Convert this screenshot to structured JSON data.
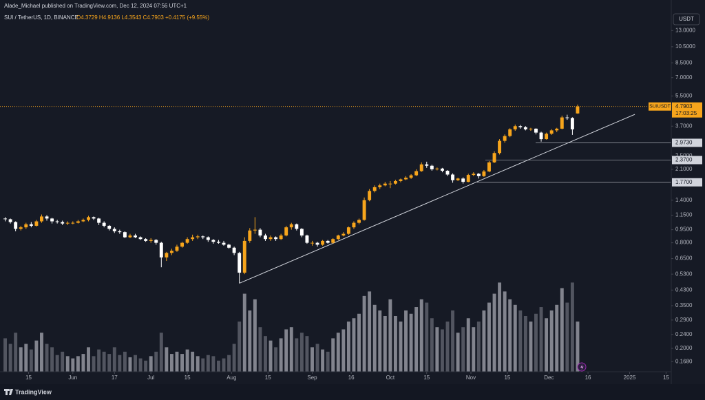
{
  "chart_data": {
    "type": "candlestick",
    "header": "Alade_Michael published on TradingView.com, Dec 12, 2024 07:56 UTC+1",
    "symbol_line": "SUI / TetherUS, 1D, BINANCE",
    "ohlc_line": "O4.3729 H4.9136 L4.3543 C4.7903 +0.4175 (+9.55%)",
    "currency": "USDT",
    "symbol": "SUIUSDT",
    "countdown": "17:03:25",
    "footer": "TradingView",
    "log_scale": true,
    "grid": false,
    "up_color": "#f7a51c",
    "down_color": "#ffffff",
    "volume_up_color": "#9598a1",
    "volume_down_color": "#5d606b",
    "ylim": [
      0.147,
      19.4
    ],
    "vlim": [
      0,
      100
    ],
    "xlim": [
      "2024-05-04",
      "2025-01-17"
    ],
    "yticks": [
      {
        "value": 13,
        "label": "13.0000"
      },
      {
        "value": 10.5,
        "label": "10.5000"
      },
      {
        "value": 8.5,
        "label": "8.5000"
      },
      {
        "value": 7,
        "label": "7.0000"
      },
      {
        "value": 5.5,
        "label": "5.5000"
      },
      {
        "value": 3.7,
        "label": "3.7000"
      },
      {
        "value": 2.5,
        "label": "2.5000"
      },
      {
        "value": 2.1,
        "label": "2.1000"
      },
      {
        "value": 1.4,
        "label": "1.4000"
      },
      {
        "value": 1.15,
        "label": "1.1500"
      },
      {
        "value": 0.95,
        "label": "0.9500"
      },
      {
        "value": 0.8,
        "label": "0.8000"
      },
      {
        "value": 0.65,
        "label": "0.6500"
      },
      {
        "value": 0.53,
        "label": "0.5300"
      },
      {
        "value": 0.43,
        "label": "0.4300"
      },
      {
        "value": 0.35,
        "label": "0.3500"
      },
      {
        "value": 0.29,
        "label": "0.2900"
      },
      {
        "value": 0.24,
        "label": "0.2400"
      },
      {
        "value": 0.2,
        "label": "0.2000"
      },
      {
        "value": 0.168,
        "label": "0.1680"
      }
    ],
    "xticks": [
      {
        "value": "2024-05-15",
        "label": "15"
      },
      {
        "value": "2024-06-01",
        "label": "Jun"
      },
      {
        "value": "2024-06-17",
        "label": "17"
      },
      {
        "value": "2024-07-01",
        "label": "Jul"
      },
      {
        "value": "2024-07-15",
        "label": "15"
      },
      {
        "value": "2024-08-01",
        "label": "Aug"
      },
      {
        "value": "2024-08-15",
        "label": "15"
      },
      {
        "value": "2024-09-01",
        "label": "Sep"
      },
      {
        "value": "2024-09-16",
        "label": "16"
      },
      {
        "value": "2024-10-01",
        "label": "Oct"
      },
      {
        "value": "2024-10-15",
        "label": "15"
      },
      {
        "value": "2024-11-01",
        "label": "Nov"
      },
      {
        "value": "2024-11-15",
        "label": "15"
      },
      {
        "value": "2024-12-01",
        "label": "Dec"
      },
      {
        "value": "2024-12-16",
        "label": "16"
      },
      {
        "value": "2025-01-01",
        "label": "2025"
      },
      {
        "value": "2025-01-15",
        "label": "15"
      }
    ],
    "levels": [
      {
        "value": 2.973,
        "label": "2.9730"
      },
      {
        "value": 2.37,
        "label": "2.3700"
      },
      {
        "value": 1.77,
        "label": "1.7700"
      }
    ],
    "trendline": [
      [
        "2024-08-04",
        0.47
      ],
      [
        "2025-01-03",
        4.32
      ]
    ],
    "candles": [
      [
        "2024-05-06",
        1.1,
        1.12,
        1.06,
        1.09,
        30
      ],
      [
        "2024-05-08",
        1.09,
        1.1,
        1.03,
        1.05,
        25
      ],
      [
        "2024-05-10",
        1.05,
        1.06,
        0.93,
        0.96,
        35
      ],
      [
        "2024-05-12",
        0.96,
        1.0,
        0.94,
        0.98,
        22
      ],
      [
        "2024-05-14",
        0.98,
        1.04,
        0.96,
        1.02,
        25
      ],
      [
        "2024-05-16",
        1.02,
        1.05,
        0.98,
        1.0,
        20
      ],
      [
        "2024-05-18",
        1.0,
        1.08,
        0.99,
        1.06,
        28
      ],
      [
        "2024-05-20",
        1.06,
        1.16,
        1.04,
        1.13,
        35
      ],
      [
        "2024-05-22",
        1.13,
        1.15,
        1.07,
        1.1,
        25
      ],
      [
        "2024-05-24",
        1.1,
        1.11,
        1.03,
        1.06,
        22
      ],
      [
        "2024-05-26",
        1.06,
        1.08,
        1.03,
        1.05,
        15
      ],
      [
        "2024-05-28",
        1.05,
        1.07,
        1.01,
        1.03,
        18
      ],
      [
        "2024-05-30",
        1.03,
        1.06,
        1.01,
        1.04,
        14
      ],
      [
        "2024-06-01",
        1.04,
        1.06,
        1.02,
        1.04,
        12
      ],
      [
        "2024-06-03",
        1.04,
        1.08,
        1.03,
        1.06,
        14
      ],
      [
        "2024-06-05",
        1.06,
        1.1,
        1.05,
        1.08,
        16
      ],
      [
        "2024-06-07",
        1.08,
        1.14,
        1.06,
        1.12,
        22
      ],
      [
        "2024-06-09",
        1.12,
        1.13,
        1.08,
        1.1,
        14
      ],
      [
        "2024-06-11",
        1.1,
        1.11,
        1.01,
        1.04,
        20
      ],
      [
        "2024-06-13",
        1.04,
        1.06,
        0.98,
        1.0,
        18
      ],
      [
        "2024-06-15",
        1.0,
        1.01,
        0.94,
        0.96,
        16
      ],
      [
        "2024-06-17",
        0.96,
        0.98,
        0.91,
        0.93,
        22
      ],
      [
        "2024-06-19",
        0.93,
        0.95,
        0.9,
        0.92,
        15
      ],
      [
        "2024-06-21",
        0.92,
        0.93,
        0.85,
        0.86,
        18
      ],
      [
        "2024-06-23",
        0.86,
        0.9,
        0.85,
        0.88,
        13
      ],
      [
        "2024-06-25",
        0.88,
        0.9,
        0.85,
        0.86,
        15
      ],
      [
        "2024-06-27",
        0.86,
        0.87,
        0.83,
        0.84,
        12
      ],
      [
        "2024-06-29",
        0.84,
        0.85,
        0.81,
        0.82,
        10
      ],
      [
        "2024-07-01",
        0.82,
        0.85,
        0.8,
        0.83,
        14
      ],
      [
        "2024-07-03",
        0.83,
        0.84,
        0.78,
        0.8,
        18
      ],
      [
        "2024-07-05",
        0.8,
        0.81,
        0.58,
        0.66,
        35
      ],
      [
        "2024-07-07",
        0.66,
        0.71,
        0.63,
        0.7,
        22
      ],
      [
        "2024-07-09",
        0.7,
        0.74,
        0.68,
        0.72,
        16
      ],
      [
        "2024-07-11",
        0.72,
        0.78,
        0.71,
        0.76,
        18
      ],
      [
        "2024-07-13",
        0.76,
        0.81,
        0.75,
        0.8,
        16
      ],
      [
        "2024-07-15",
        0.8,
        0.86,
        0.79,
        0.84,
        20
      ],
      [
        "2024-07-17",
        0.84,
        0.89,
        0.82,
        0.86,
        18
      ],
      [
        "2024-07-19",
        0.86,
        0.89,
        0.84,
        0.87,
        14
      ],
      [
        "2024-07-21",
        0.87,
        0.88,
        0.84,
        0.86,
        12
      ],
      [
        "2024-07-23",
        0.86,
        0.87,
        0.81,
        0.83,
        15
      ],
      [
        "2024-07-25",
        0.83,
        0.84,
        0.79,
        0.81,
        14
      ],
      [
        "2024-07-27",
        0.81,
        0.83,
        0.79,
        0.8,
        10
      ],
      [
        "2024-07-29",
        0.8,
        0.82,
        0.77,
        0.78,
        12
      ],
      [
        "2024-07-31",
        0.78,
        0.79,
        0.74,
        0.75,
        15
      ],
      [
        "2024-08-02",
        0.75,
        0.76,
        0.68,
        0.7,
        25
      ],
      [
        "2024-08-04",
        0.7,
        0.71,
        0.47,
        0.54,
        45
      ],
      [
        "2024-08-06",
        0.54,
        0.86,
        0.53,
        0.82,
        70
      ],
      [
        "2024-08-08",
        0.82,
        0.97,
        0.8,
        0.94,
        55
      ],
      [
        "2024-08-10",
        0.94,
        1.12,
        0.9,
        0.95,
        65
      ],
      [
        "2024-08-12",
        0.95,
        0.97,
        0.86,
        0.88,
        40
      ],
      [
        "2024-08-14",
        0.88,
        0.9,
        0.82,
        0.84,
        32
      ],
      [
        "2024-08-16",
        0.84,
        0.88,
        0.82,
        0.86,
        28
      ],
      [
        "2024-08-18",
        0.86,
        0.87,
        0.82,
        0.84,
        22
      ],
      [
        "2024-08-20",
        0.84,
        0.9,
        0.83,
        0.88,
        30
      ],
      [
        "2024-08-22",
        0.88,
        1.0,
        0.87,
        0.98,
        38
      ],
      [
        "2024-08-24",
        0.98,
        1.04,
        0.95,
        1.02,
        40
      ],
      [
        "2024-08-26",
        1.02,
        1.03,
        0.94,
        0.96,
        30
      ],
      [
        "2024-08-28",
        0.96,
        0.97,
        0.86,
        0.88,
        35
      ],
      [
        "2024-08-30",
        0.88,
        0.89,
        0.79,
        0.8,
        32
      ],
      [
        "2024-09-01",
        0.8,
        0.82,
        0.77,
        0.8,
        22
      ],
      [
        "2024-09-03",
        0.8,
        0.81,
        0.76,
        0.78,
        25
      ],
      [
        "2024-09-05",
        0.78,
        0.83,
        0.77,
        0.82,
        20
      ],
      [
        "2024-09-07",
        0.82,
        0.83,
        0.79,
        0.8,
        18
      ],
      [
        "2024-09-09",
        0.8,
        0.85,
        0.79,
        0.84,
        30
      ],
      [
        "2024-09-11",
        0.84,
        0.89,
        0.83,
        0.88,
        35
      ],
      [
        "2024-09-13",
        0.88,
        0.92,
        0.87,
        0.9,
        38
      ],
      [
        "2024-09-15",
        0.9,
        0.99,
        0.89,
        0.98,
        45
      ],
      [
        "2024-09-17",
        0.98,
        1.06,
        0.96,
        1.04,
        48
      ],
      [
        "2024-09-19",
        1.04,
        1.1,
        1.02,
        1.08,
        52
      ],
      [
        "2024-09-21",
        1.08,
        1.45,
        1.07,
        1.4,
        68
      ],
      [
        "2024-09-23",
        1.4,
        1.62,
        1.38,
        1.58,
        72
      ],
      [
        "2024-09-25",
        1.58,
        1.7,
        1.55,
        1.66,
        60
      ],
      [
        "2024-09-27",
        1.66,
        1.74,
        1.62,
        1.7,
        55
      ],
      [
        "2024-09-29",
        1.7,
        1.78,
        1.68,
        1.74,
        50
      ],
      [
        "2024-10-01",
        1.74,
        1.8,
        1.64,
        1.74,
        65
      ],
      [
        "2024-10-03",
        1.74,
        1.83,
        1.72,
        1.8,
        50
      ],
      [
        "2024-10-05",
        1.8,
        1.86,
        1.77,
        1.84,
        45
      ],
      [
        "2024-10-07",
        1.84,
        1.92,
        1.82,
        1.88,
        55
      ],
      [
        "2024-10-09",
        1.88,
        1.97,
        1.85,
        1.94,
        52
      ],
      [
        "2024-10-11",
        1.94,
        2.1,
        1.92,
        2.05,
        58
      ],
      [
        "2024-10-13",
        2.05,
        2.3,
        2.03,
        2.24,
        65
      ],
      [
        "2024-10-15",
        2.24,
        2.32,
        2.14,
        2.2,
        62
      ],
      [
        "2024-10-17",
        2.2,
        2.23,
        2.06,
        2.1,
        48
      ],
      [
        "2024-10-19",
        2.1,
        2.15,
        2.07,
        2.12,
        40
      ],
      [
        "2024-10-21",
        2.12,
        2.14,
        2.02,
        2.06,
        38
      ],
      [
        "2024-10-23",
        2.06,
        2.08,
        1.92,
        1.96,
        45
      ],
      [
        "2024-10-25",
        1.96,
        1.99,
        1.76,
        1.82,
        55
      ],
      [
        "2024-10-27",
        1.82,
        1.88,
        1.8,
        1.86,
        35
      ],
      [
        "2024-10-29",
        1.86,
        1.89,
        1.74,
        1.78,
        40
      ],
      [
        "2024-10-31",
        1.78,
        1.98,
        1.77,
        1.95,
        48
      ],
      [
        "2024-11-02",
        1.95,
        2.02,
        1.92,
        1.98,
        40
      ],
      [
        "2024-11-04",
        1.98,
        2.0,
        1.86,
        1.92,
        45
      ],
      [
        "2024-11-06",
        1.92,
        2.08,
        1.9,
        2.04,
        55
      ],
      [
        "2024-11-08",
        2.04,
        2.34,
        2.02,
        2.3,
        62
      ],
      [
        "2024-11-10",
        2.3,
        2.66,
        2.28,
        2.6,
        70
      ],
      [
        "2024-11-12",
        2.6,
        3.12,
        2.55,
        3.05,
        80
      ],
      [
        "2024-11-14",
        3.05,
        3.32,
        2.98,
        3.25,
        72
      ],
      [
        "2024-11-16",
        3.25,
        3.6,
        3.2,
        3.55,
        65
      ],
      [
        "2024-11-18",
        3.55,
        3.78,
        3.48,
        3.7,
        60
      ],
      [
        "2024-11-20",
        3.7,
        3.76,
        3.58,
        3.65,
        55
      ],
      [
        "2024-11-22",
        3.65,
        3.7,
        3.5,
        3.55,
        50
      ],
      [
        "2024-11-24",
        3.55,
        3.62,
        3.48,
        3.58,
        45
      ],
      [
        "2024-11-26",
        3.58,
        3.6,
        3.32,
        3.4,
        52
      ],
      [
        "2024-11-28",
        3.4,
        3.44,
        3.02,
        3.12,
        58
      ],
      [
        "2024-11-30",
        3.12,
        3.4,
        3.1,
        3.35,
        48
      ],
      [
        "2024-12-02",
        3.35,
        3.56,
        3.3,
        3.5,
        55
      ],
      [
        "2024-12-04",
        3.5,
        3.62,
        3.42,
        3.58,
        60
      ],
      [
        "2024-12-06",
        3.58,
        4.25,
        3.55,
        4.15,
        75
      ],
      [
        "2024-12-08",
        4.15,
        4.3,
        4.02,
        4.12,
        62
      ],
      [
        "2024-12-10",
        4.12,
        4.16,
        3.3,
        3.55,
        80
      ],
      [
        "2024-12-12",
        4.3729,
        4.9136,
        4.3543,
        4.7903,
        45
      ]
    ]
  }
}
